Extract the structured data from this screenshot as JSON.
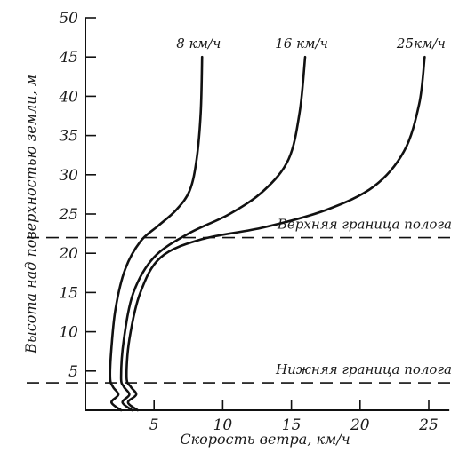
{
  "chart_data": {
    "type": "line",
    "xlabel": "Скорость ветра, км/ч",
    "ylabel": "Высота над поверхностью земли, м",
    "xlim": [
      0,
      26.5
    ],
    "ylim": [
      0,
      50
    ],
    "x_ticks": [
      5,
      10,
      15,
      20,
      25
    ],
    "y_ticks": [
      5,
      10,
      15,
      20,
      25,
      30,
      35,
      40,
      45,
      50
    ],
    "y_tick_labels": [
      "5",
      "10",
      "15",
      "20",
      "25",
      "30",
      "35",
      "40",
      "45",
      "50"
    ],
    "grid": false,
    "series": [
      {
        "name": "8 км/ч",
        "x": [
          2.6,
          1.9,
          2.4,
          2.0,
          1.8,
          1.9,
          2.2,
          2.9,
          4.0,
          5.3,
          6.6,
          7.6,
          8.1,
          8.4,
          8.5
        ],
        "y": [
          0,
          1.0,
          2.0,
          3.0,
          4.2,
          8,
          13,
          18,
          21.5,
          23.5,
          25.5,
          28,
          32,
          38,
          45
        ]
      },
      {
        "name": "16 км/ч",
        "x": [
          3.4,
          2.7,
          3.2,
          2.8,
          2.6,
          2.8,
          3.5,
          5.0,
          7.5,
          10.5,
          13.0,
          14.8,
          15.6,
          16.0
        ],
        "y": [
          0,
          1.0,
          2.0,
          3.0,
          4.2,
          9,
          15,
          19.5,
          22.5,
          25,
          28,
          32,
          38,
          45
        ]
      },
      {
        "name": "25км/ч",
        "x": [
          3.8,
          3.1,
          3.7,
          3.3,
          3.0,
          3.2,
          4.0,
          5.5,
          8.5,
          13.0,
          17.5,
          21.0,
          23.2,
          24.3,
          24.7
        ],
        "y": [
          0,
          1.0,
          2.0,
          3.0,
          4.2,
          9,
          15,
          19.5,
          21.8,
          23.3,
          25.5,
          28.5,
          33,
          39,
          45
        ]
      }
    ],
    "reference_lines": [
      {
        "y": 22,
        "label": "Верхняя граница полога"
      },
      {
        "y": 3.5,
        "label": "Нижняя граница полога"
      }
    ]
  }
}
